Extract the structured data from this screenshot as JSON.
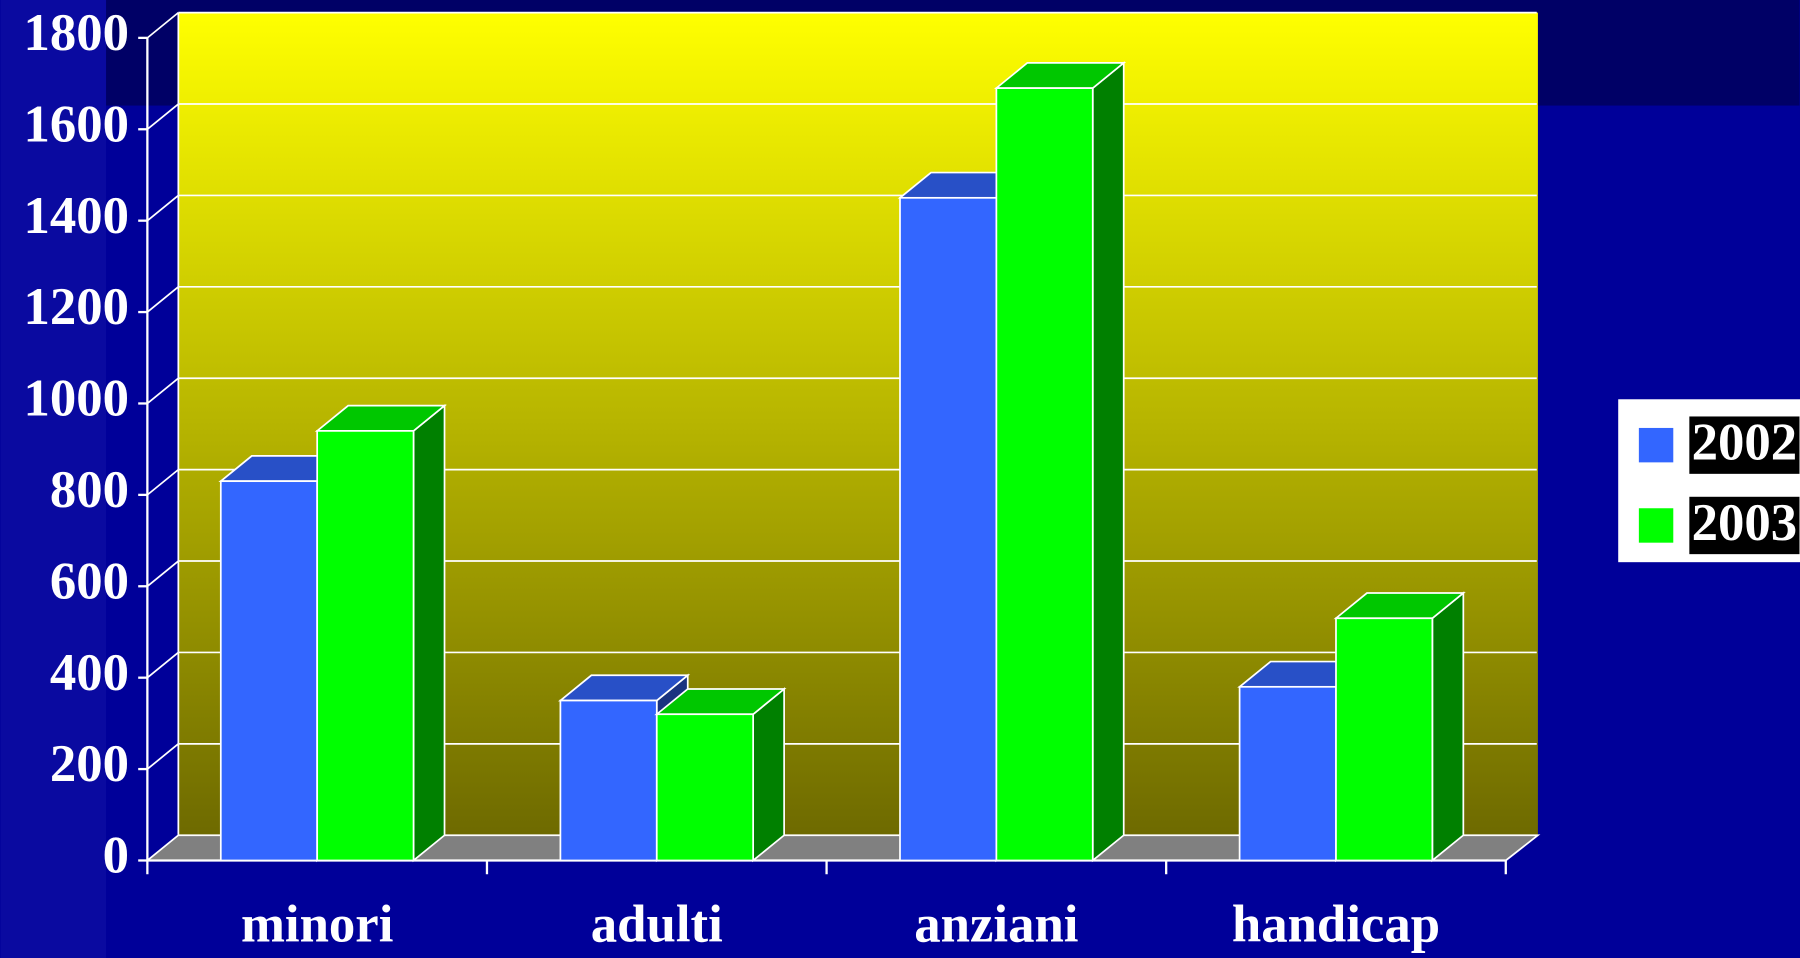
{
  "chart_data": {
    "type": "bar3d",
    "categories": [
      "minori",
      "adulti",
      "anziani",
      "handicap"
    ],
    "series": [
      {
        "name": "2002",
        "color": "#3366ff",
        "values": [
          830,
          350,
          1450,
          380
        ]
      },
      {
        "name": "2003",
        "color": "#00ff00",
        "values": [
          940,
          320,
          1690,
          530
        ]
      }
    ],
    "ylim": [
      0,
      1800
    ],
    "yticks": [
      0,
      200,
      400,
      600,
      800,
      1000,
      1200,
      1400,
      1600,
      1800
    ],
    "grid": true,
    "legend": "right"
  }
}
